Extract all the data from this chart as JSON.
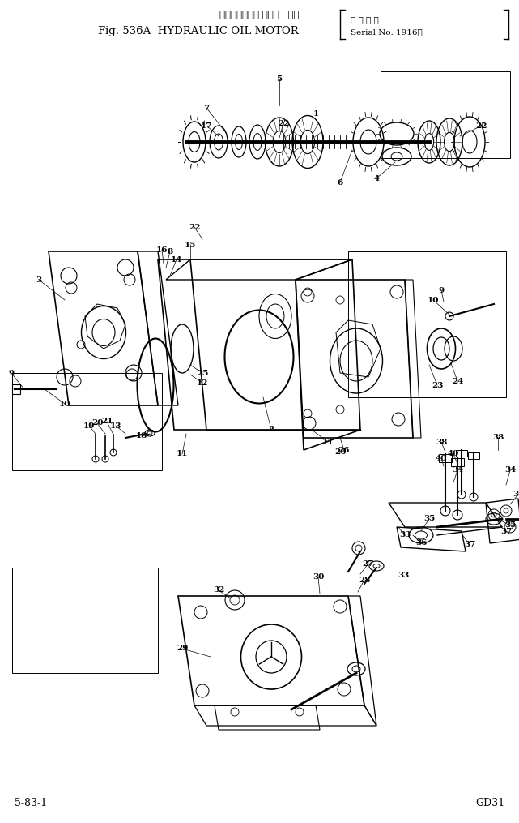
{
  "title_jp": "ハイドロリック オイル モータ",
  "title_en": "Fig. 536A  HYDRAULIC OIL MOTOR",
  "serial_line1": "適 用 号 機",
  "serial_line2": "Serial No. 1916～",
  "bottom_left": "5-83-1",
  "bottom_right": "GD31",
  "bg_color": "#ffffff",
  "fig_width": 6.41,
  "fig_height": 10.15,
  "dpi": 100
}
